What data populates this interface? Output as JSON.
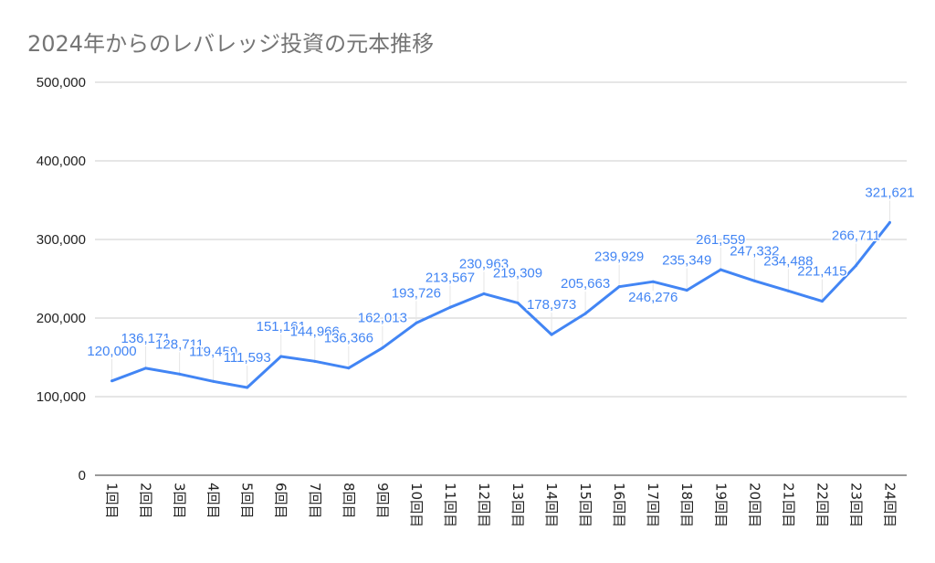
{
  "chart_data": {
    "type": "line",
    "title": "2024年からのレバレッジ投資の元本推移",
    "xlabel": "",
    "ylabel": "",
    "categories": [
      "1回目",
      "2回目",
      "3回目",
      "4回目",
      "5回目",
      "6回目",
      "7回目",
      "8回目",
      "9回目",
      "10回目",
      "11回目",
      "12回目",
      "13回目",
      "14回目",
      "15回目",
      "16回目",
      "17回目",
      "18回目",
      "19回目",
      "20回目",
      "21回目",
      "22回目",
      "23回目",
      "24回目"
    ],
    "values": [
      120000,
      136171,
      128711,
      119459,
      111593,
      151161,
      144966,
      136366,
      162013,
      193726,
      213567,
      230963,
      219309,
      178973,
      205663,
      239929,
      246276,
      235349,
      261559,
      247332,
      234488,
      221415,
      266711,
      321621
    ],
    "data_labels": [
      "120,000",
      "136,171",
      "128,711",
      "119,459",
      "111,593",
      "151,161",
      "144,966",
      "136,366",
      "162,013",
      "193,726",
      "213,567",
      "230,963",
      "219,309",
      "178,973",
      "205,663",
      "239,929",
      "246,276",
      "235,349",
      "261,559",
      "247,332",
      "234,488",
      "221,415",
      "266,711",
      "321,621"
    ],
    "ylim": [
      0,
      500000
    ],
    "yticks": [
      "0",
      "100,000",
      "200,000",
      "300,000",
      "400,000",
      "500,000"
    ],
    "grid": true,
    "legend": "none",
    "color": "#4285f4"
  }
}
